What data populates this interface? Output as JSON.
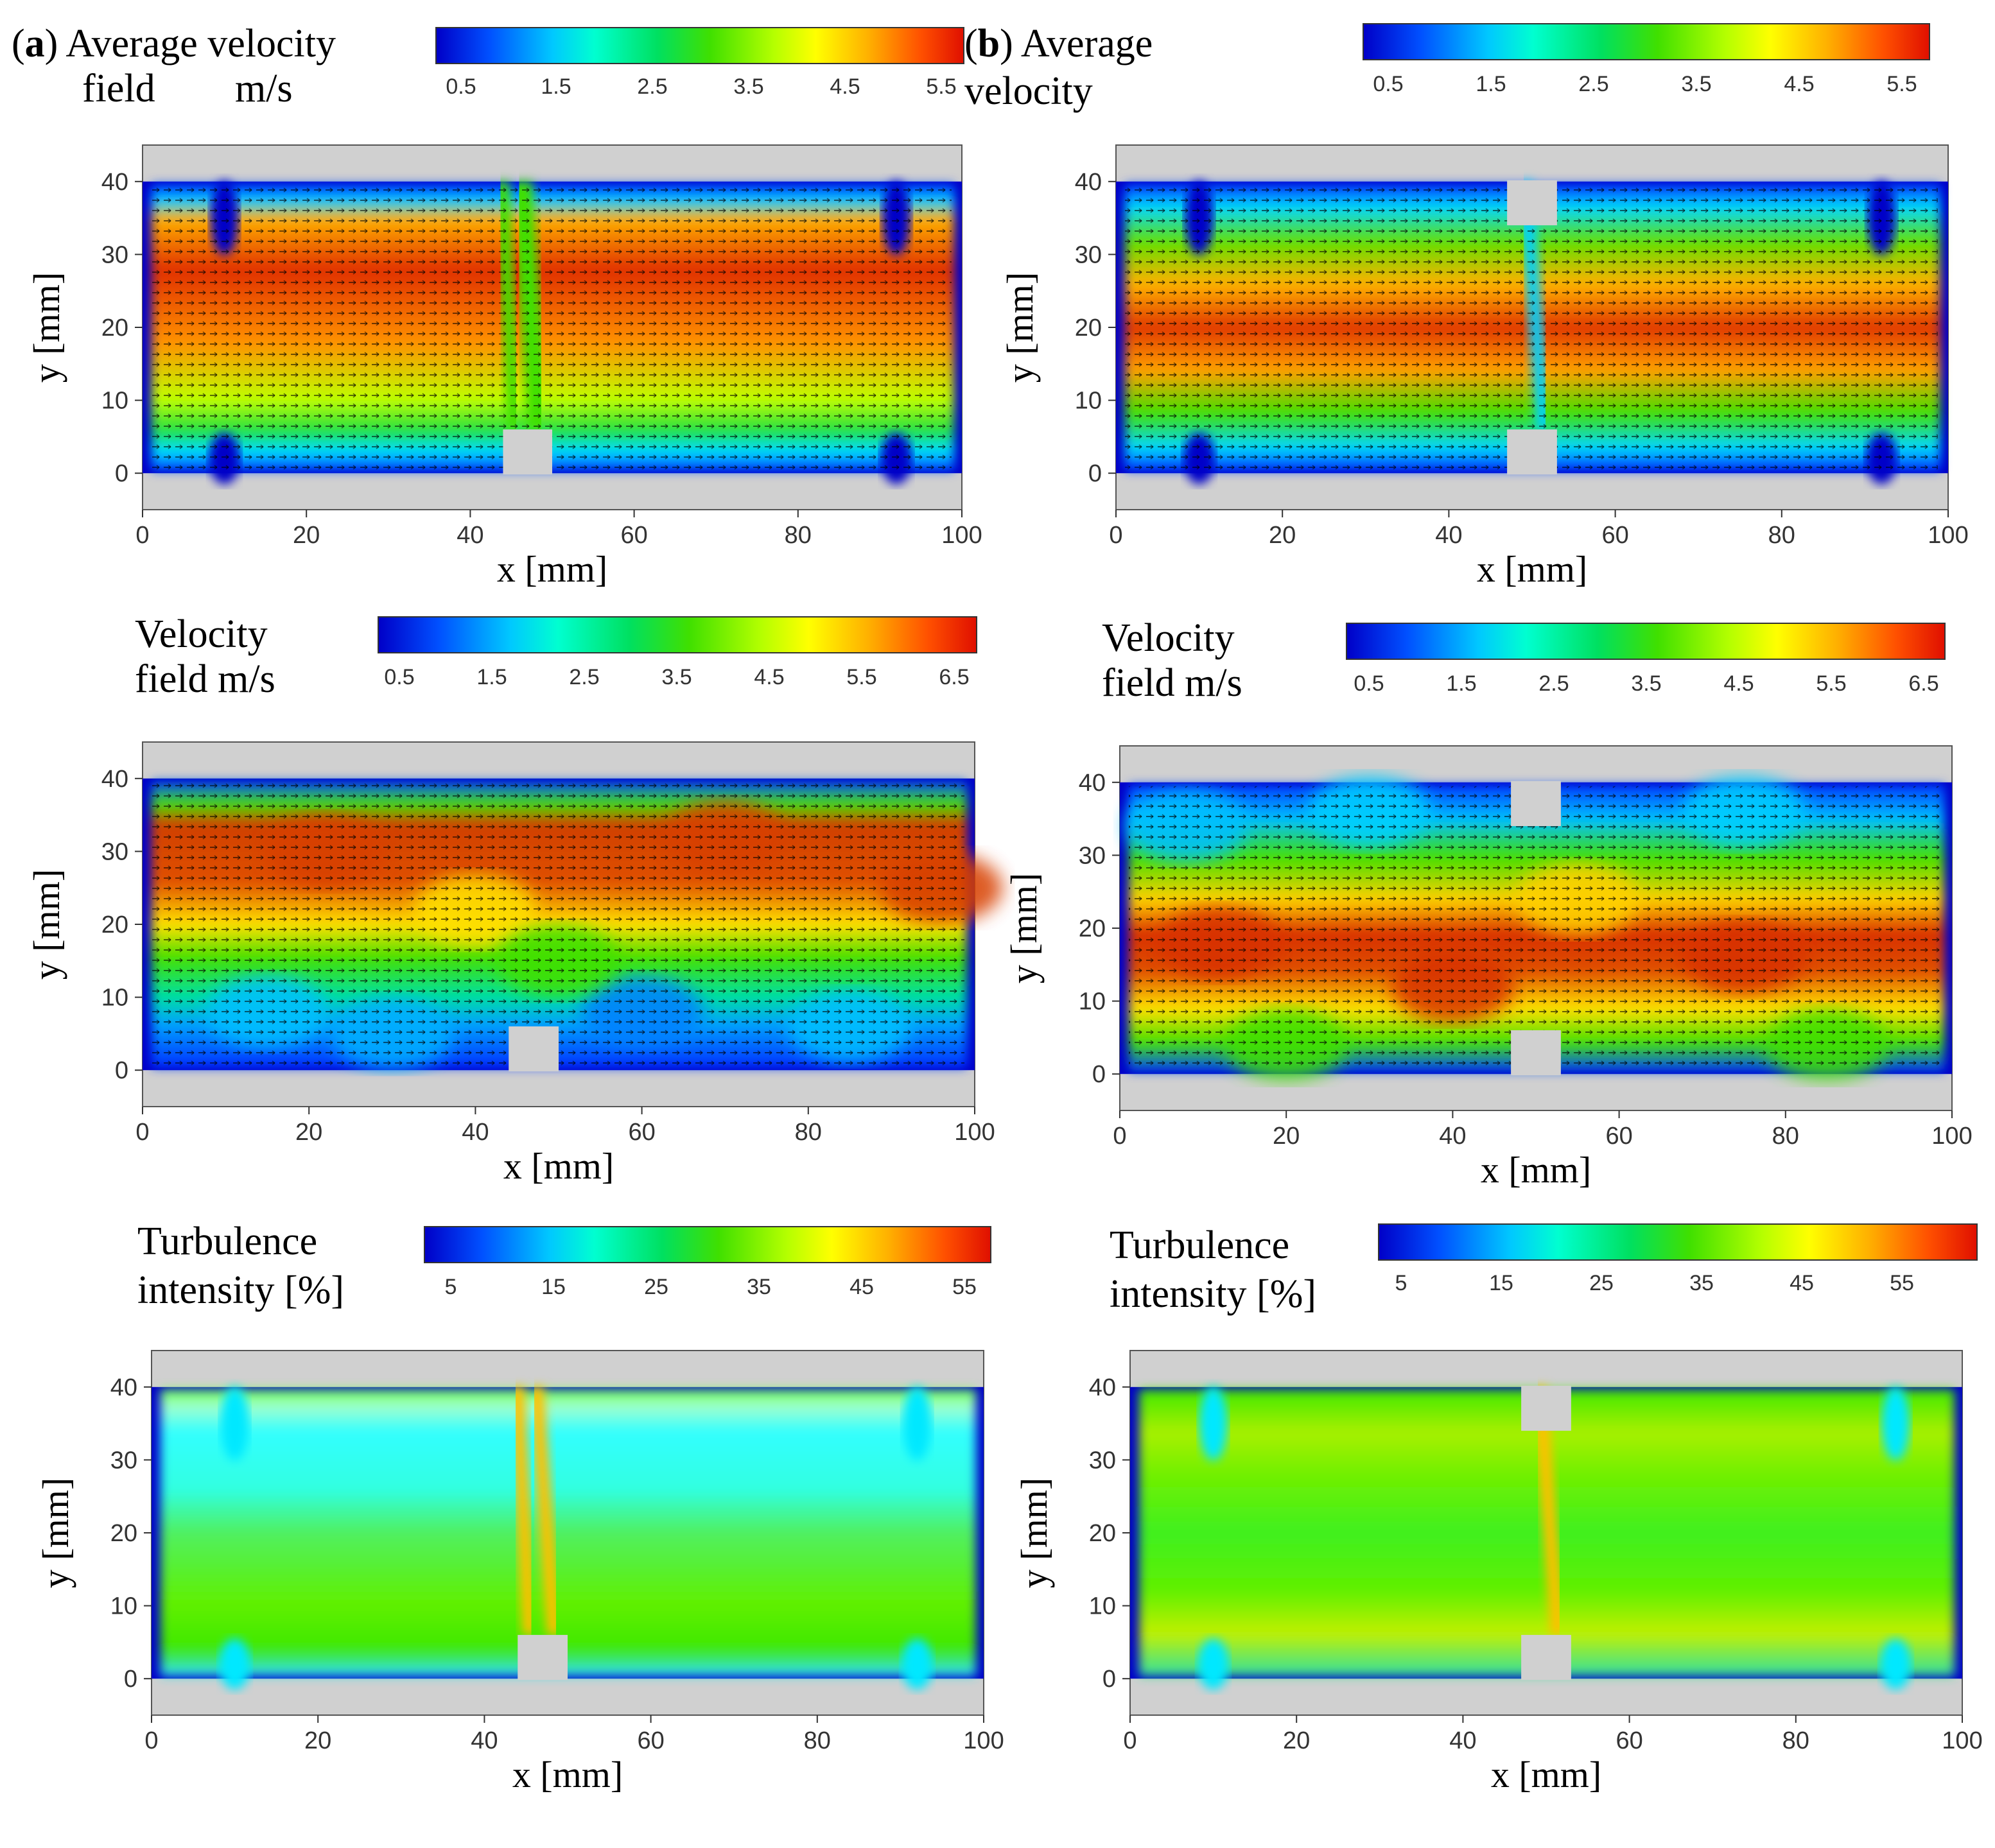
{
  "figure": {
    "panel_a": {
      "letter": "a",
      "label_line1": "Average velocity",
      "label_line2": "field",
      "unit": "m/s"
    },
    "panel_b": {
      "letter": "b",
      "label_line1": "Average",
      "label_line2": "velocity"
    },
    "velocity_label_line1": "Velocity",
    "velocity_label_line2": "field m/s",
    "turbulence_label_line1": "Turbulence",
    "turbulence_label_line2": "intensity [%]"
  },
  "colors": {
    "cold": "#0000c8",
    "mid": "#40e000",
    "hot": "#e01000",
    "wall": "#d0d0d0"
  },
  "colorbars": {
    "avg_velocity": [
      "0.5",
      "1.5",
      "2.5",
      "3.5",
      "4.5",
      "5.5"
    ],
    "velocity": [
      "0.5",
      "1.5",
      "2.5",
      "3.5",
      "4.5",
      "5.5",
      "6.5"
    ],
    "turbulence": [
      "5",
      "15",
      "25",
      "35",
      "45",
      "55"
    ]
  },
  "chart_data": [
    {
      "type": "heatmap",
      "id": "a-avg",
      "title": "Average velocity field",
      "xlabel": "x [mm]",
      "ylabel": "y [mm]",
      "xlim": [
        0,
        100
      ],
      "ylim": [
        -5,
        45
      ],
      "xticks": [
        "0",
        "20",
        "40",
        "60",
        "80",
        "100"
      ],
      "yticks": [
        "0",
        "10",
        "20",
        "30",
        "40"
      ],
      "colorbar_unit": "m/s",
      "value_range": [
        0.5,
        5.5
      ],
      "obstacles": "baffle on bottom wall at x≈44-50 mm, height 6 mm"
    },
    {
      "type": "heatmap",
      "id": "b-avg",
      "title": "Average velocity",
      "xlabel": "x [mm]",
      "ylabel": "y [mm]",
      "xlim": [
        0,
        100
      ],
      "ylim": [
        -5,
        45
      ],
      "xticks": [
        "0",
        "20",
        "40",
        "60",
        "80",
        "100"
      ],
      "yticks": [
        "0",
        "10",
        "20",
        "30",
        "40"
      ],
      "colorbar_unit": "m/s",
      "value_range": [
        0.5,
        5.5
      ],
      "obstacles": "baffles on both walls at x≈47-53 mm"
    },
    {
      "type": "heatmap",
      "id": "a-inst",
      "title": "Velocity field m/s",
      "xlabel": "x [mm]",
      "ylabel": "y [mm]",
      "xlim": [
        0,
        100
      ],
      "ylim": [
        -5,
        45
      ],
      "xticks": [
        "0",
        "20",
        "40",
        "60",
        "80",
        "100"
      ],
      "yticks": [
        "0",
        "10",
        "20",
        "30",
        "40"
      ],
      "colorbar_unit": "m/s",
      "value_range": [
        0.5,
        6.5
      ]
    },
    {
      "type": "heatmap",
      "id": "b-inst",
      "title": "Velocity field m/s",
      "xlabel": "x [mm]",
      "ylabel": "y [mm]",
      "xlim": [
        0,
        100
      ],
      "ylim": [
        -5,
        45
      ],
      "xticks": [
        "0",
        "20",
        "40",
        "60",
        "80",
        "100"
      ],
      "yticks": [
        "0",
        "10",
        "20",
        "30",
        "40"
      ],
      "colorbar_unit": "m/s",
      "value_range": [
        0.5,
        6.5
      ]
    },
    {
      "type": "heatmap",
      "id": "a-turb",
      "title": "Turbulence intensity [%]",
      "xlabel": "x [mm]",
      "ylabel": "y [mm]",
      "xlim": [
        0,
        100
      ],
      "ylim": [
        -5,
        45
      ],
      "xticks": [
        "0",
        "20",
        "40",
        "60",
        "80",
        "100"
      ],
      "yticks": [
        "0",
        "10",
        "20",
        "30",
        "40"
      ],
      "colorbar_unit": "%",
      "value_range": [
        5,
        55
      ]
    },
    {
      "type": "heatmap",
      "id": "b-turb",
      "title": "Turbulence intensity [%]",
      "xlabel": "x [mm]",
      "ylabel": "y [mm]",
      "xlim": [
        0,
        100
      ],
      "ylim": [
        -5,
        45
      ],
      "xticks": [
        "0",
        "20",
        "40",
        "60",
        "80",
        "100"
      ],
      "yticks": [
        "0",
        "10",
        "20",
        "30",
        "40"
      ],
      "colorbar_unit": "%",
      "value_range": [
        5,
        55
      ]
    }
  ]
}
